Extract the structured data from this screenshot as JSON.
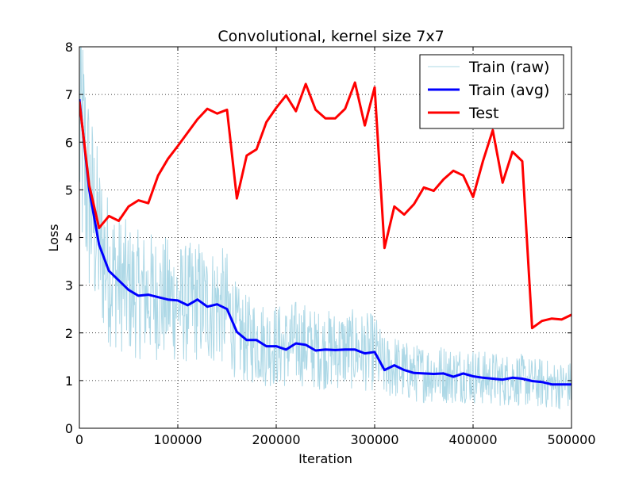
{
  "chart_data": {
    "type": "line",
    "title": "Convolutional, kernel size 7x7",
    "xlabel": "Iteration",
    "ylabel": "Loss",
    "xlim": [
      0,
      500000
    ],
    "ylim": [
      0,
      8
    ],
    "xticks": [
      0,
      100000,
      200000,
      300000,
      400000,
      500000
    ],
    "xtick_labels": [
      "0",
      "100000",
      "200000",
      "300000",
      "400000",
      "500000"
    ],
    "yticks": [
      0,
      1,
      2,
      3,
      4,
      5,
      6,
      7,
      8
    ],
    "ytick_labels": [
      "0",
      "1",
      "2",
      "3",
      "4",
      "5",
      "6",
      "7",
      "8"
    ],
    "grid": true,
    "legend_position": "top-right",
    "series": [
      {
        "name": "Train (raw)",
        "color": "#add8e6",
        "style": "noisy",
        "x": [
          0,
          10000,
          20000,
          30000,
          40000,
          50000,
          60000,
          70000,
          80000,
          90000,
          100000,
          110000,
          120000,
          130000,
          140000,
          150000,
          160000,
          170000,
          180000,
          190000,
          200000,
          210000,
          220000,
          230000,
          240000,
          250000,
          260000,
          270000,
          280000,
          290000,
          300000,
          310000,
          320000,
          330000,
          340000,
          350000,
          360000,
          370000,
          380000,
          390000,
          400000,
          410000,
          420000,
          430000,
          440000,
          450000,
          460000,
          470000,
          480000,
          490000,
          500000
        ],
        "y": [
          6.4,
          4.8,
          3.9,
          3.3,
          3.1,
          2.9,
          2.8,
          2.8,
          2.75,
          2.7,
          2.65,
          2.6,
          2.7,
          2.55,
          2.6,
          2.5,
          2.0,
          1.85,
          1.85,
          1.75,
          1.75,
          1.7,
          1.8,
          1.75,
          1.65,
          1.65,
          1.65,
          1.65,
          1.65,
          1.6,
          1.6,
          1.25,
          1.3,
          1.2,
          1.15,
          1.15,
          1.15,
          1.15,
          1.1,
          1.15,
          1.1,
          1.05,
          1.05,
          1.0,
          1.05,
          1.0,
          0.95,
          0.95,
          0.9,
          0.9,
          0.9
        ]
      },
      {
        "name": "Train (avg)",
        "color": "#0000ff",
        "x": [
          0,
          10000,
          20000,
          30000,
          40000,
          50000,
          60000,
          70000,
          80000,
          90000,
          100000,
          110000,
          120000,
          130000,
          140000,
          150000,
          160000,
          170000,
          180000,
          190000,
          200000,
          210000,
          220000,
          230000,
          240000,
          250000,
          260000,
          270000,
          280000,
          290000,
          300000,
          310000,
          320000,
          330000,
          340000,
          350000,
          360000,
          370000,
          380000,
          390000,
          400000,
          410000,
          420000,
          430000,
          440000,
          450000,
          460000,
          470000,
          480000,
          490000,
          500000
        ],
        "y": [
          6.9,
          5.0,
          3.85,
          3.3,
          3.1,
          2.9,
          2.78,
          2.8,
          2.75,
          2.7,
          2.68,
          2.58,
          2.7,
          2.55,
          2.6,
          2.5,
          2.02,
          1.85,
          1.85,
          1.72,
          1.72,
          1.65,
          1.78,
          1.75,
          1.63,
          1.65,
          1.64,
          1.65,
          1.65,
          1.57,
          1.6,
          1.22,
          1.32,
          1.22,
          1.16,
          1.15,
          1.14,
          1.15,
          1.08,
          1.15,
          1.09,
          1.06,
          1.04,
          1.02,
          1.06,
          1.04,
          0.99,
          0.97,
          0.92,
          0.92,
          0.92
        ]
      },
      {
        "name": "Test",
        "color": "#ff0000",
        "x": [
          0,
          10000,
          20000,
          30000,
          40000,
          50000,
          60000,
          70000,
          80000,
          90000,
          100000,
          110000,
          120000,
          130000,
          140000,
          150000,
          160000,
          170000,
          180000,
          190000,
          200000,
          210000,
          220000,
          230000,
          240000,
          250000,
          260000,
          270000,
          280000,
          290000,
          300000,
          310000,
          320000,
          330000,
          340000,
          350000,
          360000,
          370000,
          380000,
          390000,
          400000,
          410000,
          420000,
          430000,
          440000,
          450000,
          460000,
          470000,
          480000,
          490000,
          500000
        ],
        "y": [
          6.85,
          5.1,
          4.2,
          4.45,
          4.35,
          4.65,
          4.78,
          4.72,
          5.3,
          5.65,
          5.92,
          6.2,
          6.48,
          6.7,
          6.6,
          6.68,
          4.82,
          5.72,
          5.85,
          6.42,
          6.72,
          6.98,
          6.65,
          7.22,
          6.68,
          6.5,
          6.5,
          6.7,
          7.25,
          6.35,
          7.15,
          3.78,
          4.65,
          4.48,
          4.7,
          5.05,
          4.98,
          5.22,
          5.4,
          5.3,
          4.85,
          5.6,
          6.25,
          5.15,
          5.8,
          5.6,
          2.1,
          2.25,
          2.3,
          2.28,
          2.38
        ]
      }
    ]
  }
}
